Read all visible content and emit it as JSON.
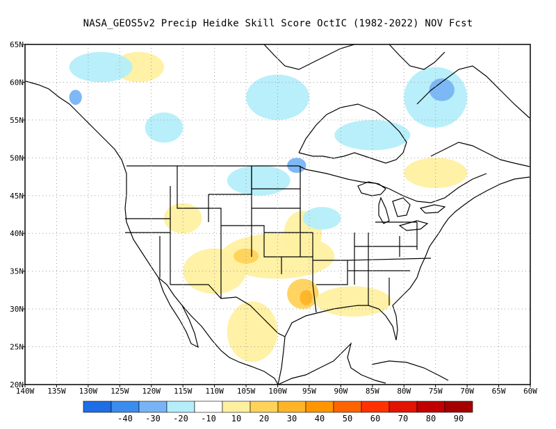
{
  "title": "NASA_GEOS5v2 Precip Heidke Skill Score OctIC (1982-2022) NOV Fcst",
  "map": {
    "lon_labels": [
      "140W",
      "135W",
      "130W",
      "125W",
      "120W",
      "115W",
      "110W",
      "105W",
      "100W",
      "95W",
      "90W",
      "85W",
      "80W",
      "75W",
      "70W",
      "65W",
      "60W"
    ],
    "lat_labels": [
      "65N",
      "60N",
      "55N",
      "50N",
      "45N",
      "40N",
      "35N",
      "30N",
      "25N",
      "20N"
    ],
    "lon_range": [
      -140,
      -60
    ],
    "lat_range": [
      20,
      65
    ],
    "grid": "dotted"
  },
  "legend": {
    "colors": [
      "#1e6ee6",
      "#3c8ced",
      "#78b4f5",
      "#b4eefa",
      "#ffffff",
      "#fff0a0",
      "#ffd25a",
      "#ffb428",
      "#ff9600",
      "#ff6400",
      "#ff3200",
      "#e11400",
      "#c00000",
      "#a50000"
    ],
    "labels": [
      "-40",
      "-30",
      "-20",
      "-10",
      "10",
      "20",
      "30",
      "40",
      "50",
      "60",
      "70",
      "80",
      "90"
    ]
  },
  "regions": [
    {
      "level": "20",
      "lon": -100,
      "lat": 37,
      "r": [
        9,
        3
      ]
    },
    {
      "level": "20",
      "lon": -110,
      "lat": 35,
      "r": [
        5,
        3
      ]
    },
    {
      "level": "20",
      "lon": -104,
      "lat": 27,
      "r": [
        4,
        4
      ]
    },
    {
      "level": "30",
      "lon": -105,
      "lat": 37,
      "r": [
        2,
        1
      ]
    },
    {
      "level": "30",
      "lon": -96,
      "lat": 32,
      "r": [
        2.5,
        2
      ]
    },
    {
      "level": "40",
      "lon": -95.5,
      "lat": 31.5,
      "r": [
        1,
        1
      ]
    },
    {
      "level": "20",
      "lon": -96,
      "lat": 40,
      "r": [
        3,
        3
      ]
    },
    {
      "level": "20",
      "lon": -88,
      "lat": 31,
      "r": [
        6,
        2
      ]
    },
    {
      "level": "20",
      "lon": -122,
      "lat": 62,
      "r": [
        4,
        2
      ]
    },
    {
      "level": "20",
      "lon": -75,
      "lat": 48,
      "r": [
        5,
        2
      ]
    },
    {
      "level": "20",
      "lon": -115,
      "lat": 42,
      "r": [
        3,
        2
      ]
    },
    {
      "level": "-10",
      "lon": -128,
      "lat": 62,
      "r": [
        5,
        2
      ]
    },
    {
      "level": "-10",
      "lon": -100,
      "lat": 58,
      "r": [
        5,
        3
      ]
    },
    {
      "level": "-10",
      "lon": -85,
      "lat": 53,
      "r": [
        6,
        2
      ]
    },
    {
      "level": "-10",
      "lon": -75,
      "lat": 58,
      "r": [
        5,
        4
      ]
    },
    {
      "level": "-10",
      "lon": -118,
      "lat": 54,
      "r": [
        3,
        2
      ]
    },
    {
      "level": "-10",
      "lon": -103,
      "lat": 47,
      "r": [
        5,
        2
      ]
    },
    {
      "level": "-10",
      "lon": -93,
      "lat": 42,
      "r": [
        3,
        1.5
      ]
    },
    {
      "level": "-20",
      "lon": -74,
      "lat": 59,
      "r": [
        2,
        1.5
      ]
    },
    {
      "level": "-20",
      "lon": -97,
      "lat": 49,
      "r": [
        1.5,
        1
      ]
    },
    {
      "level": "-20",
      "lon": -132,
      "lat": 58,
      "r": [
        1,
        1
      ]
    }
  ]
}
